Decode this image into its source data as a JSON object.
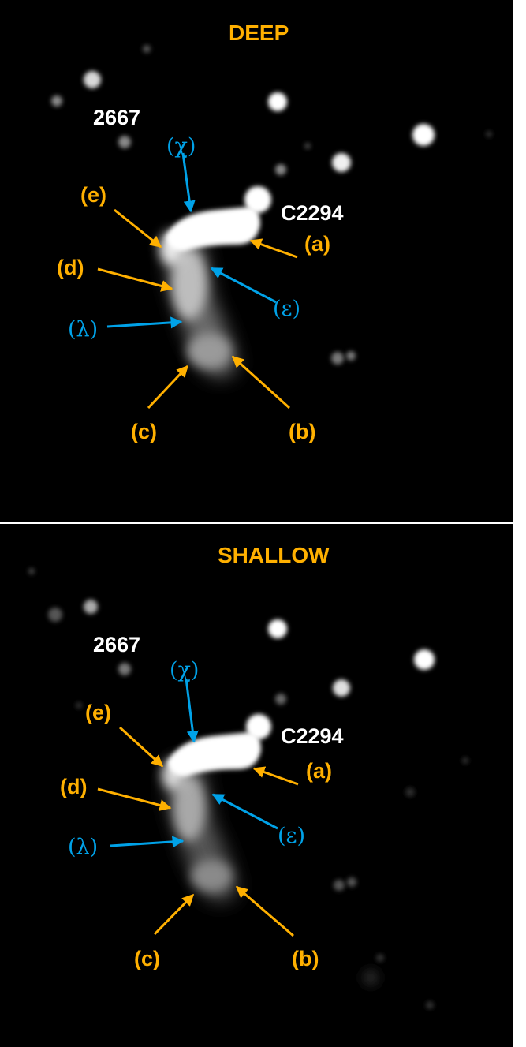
{
  "colors": {
    "label_orange": "#FFB000",
    "label_blue": "#00A2E8",
    "label_white": "#FFFFFF",
    "background": "#000000"
  },
  "panels": [
    {
      "title": "DEEP",
      "labels": {
        "object_2667": "2667",
        "object_c2294": "C2294",
        "a": "(a)",
        "b": "(b)",
        "c": "(c)",
        "d": "(d)",
        "e": "(e)",
        "chi": "(χ)",
        "epsilon": "(ε)",
        "lambda": "(λ)"
      }
    },
    {
      "title": "SHALLOW",
      "labels": {
        "object_2667": "2667",
        "object_c2294": "C2294",
        "a": "(a)",
        "b": "(b)",
        "c": "(c)",
        "d": "(d)",
        "e": "(e)",
        "chi": "(χ)",
        "epsilon": "(ε)",
        "lambda": "(λ)"
      }
    }
  ]
}
